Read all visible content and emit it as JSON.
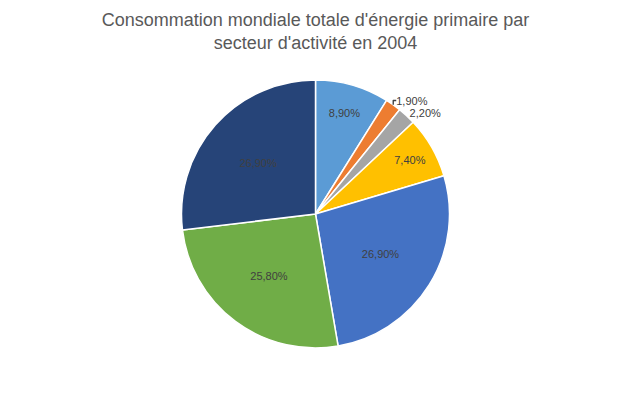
{
  "chart_data": {
    "type": "pie",
    "title": "Consommation mondiale totale d'énergie primaire par\nsecteur d'activité en 2004",
    "values": [
      8.9,
      1.9,
      2.2,
      7.4,
      26.9,
      25.8,
      26.9
    ],
    "value_labels": [
      "8,90%",
      "1,90%",
      "2,20%",
      "7,40%",
      "26,90%",
      "25,80%",
      "26,90%"
    ],
    "colors": [
      "#5b9bd5",
      "#ed7d31",
      "#a5a5a5",
      "#ffc000",
      "#4472c4",
      "#70ad47",
      "#264478"
    ],
    "data_labels": true
  }
}
